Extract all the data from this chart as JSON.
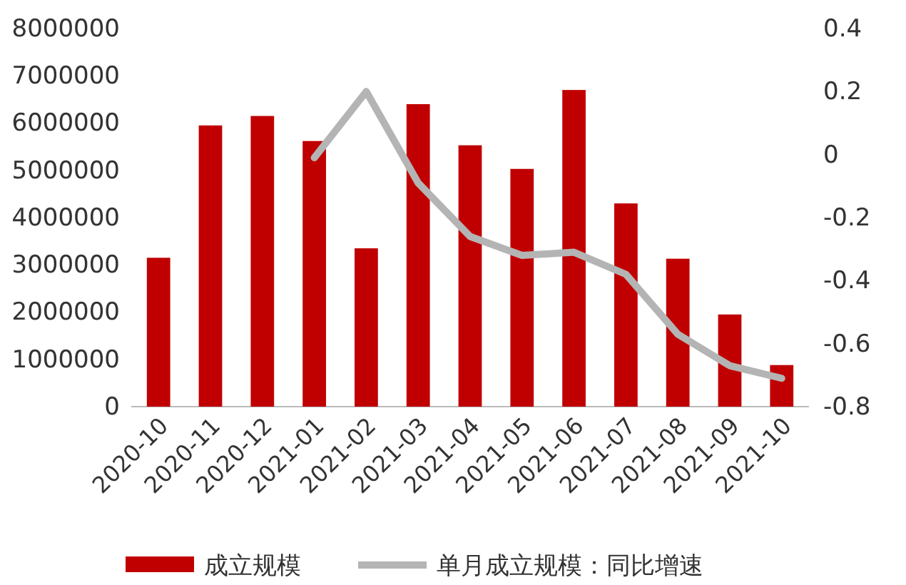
{
  "chart_data": {
    "type": "bar",
    "categories": [
      "2020-10",
      "2020-11",
      "2020-12",
      "2021-01",
      "2021-02",
      "2021-03",
      "2021-04",
      "2021-05",
      "2021-06",
      "2021-07",
      "2021-08",
      "2021-09",
      "2021-10"
    ],
    "series": [
      {
        "name": "成立规模",
        "color": "#c00000",
        "values": [
          3150000,
          5950000,
          6150000,
          5620000,
          3350000,
          6400000,
          5530000,
          5030000,
          6700000,
          4300000,
          3130000,
          1950000,
          880000
        ]
      },
      {
        "name": "单月成立规模：同比增速",
        "type": "line",
        "axis": "y2",
        "color": "#b4b4b4",
        "values": [
          null,
          null,
          null,
          -0.01,
          0.2,
          -0.09,
          -0.26,
          -0.32,
          -0.31,
          -0.38,
          -0.57,
          -0.67,
          -0.71
        ]
      }
    ],
    "ylim": [
      0,
      8000000
    ],
    "yticks": [
      0,
      1000000,
      2000000,
      3000000,
      4000000,
      5000000,
      6000000,
      7000000,
      8000000
    ],
    "y2lim": [
      -0.8,
      0.4
    ],
    "y2ticks": [
      -0.8,
      -0.6,
      -0.4,
      -0.2,
      0,
      0.2,
      0.4
    ],
    "legend": "bottom",
    "grid": false,
    "marker": "none",
    "line_style": "solid"
  }
}
